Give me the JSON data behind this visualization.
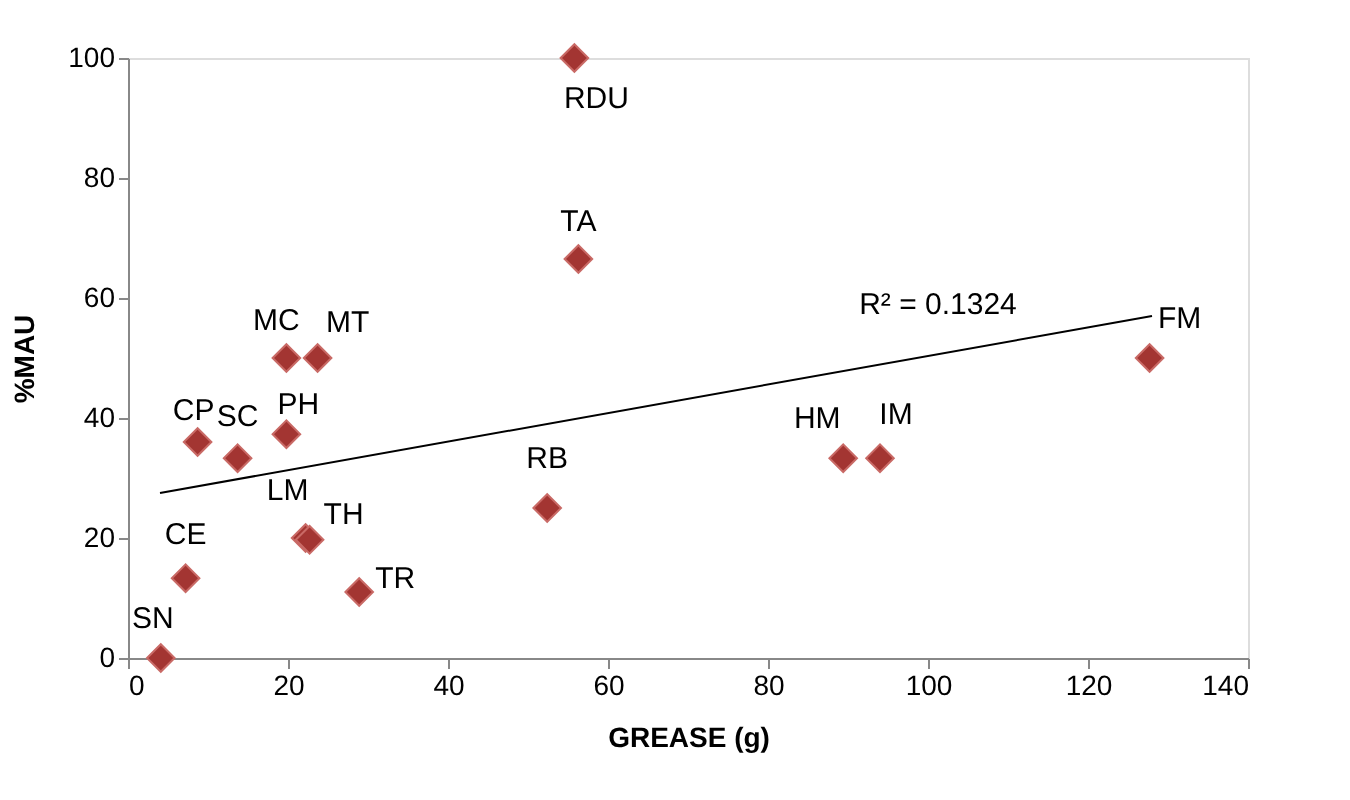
{
  "chart_data": {
    "type": "scatter",
    "xlabel": "GREASE (g)",
    "ylabel": "%MAU",
    "xlim": [
      0,
      140
    ],
    "ylim": [
      0,
      100
    ],
    "xticks": [
      0,
      20,
      40,
      60,
      80,
      100,
      120,
      140
    ],
    "yticks": [
      0,
      20,
      40,
      60,
      80,
      100
    ],
    "grid": false,
    "marker": "diamond",
    "series": [
      {
        "color": "#a33532",
        "x": [
          4.1,
          7.2,
          8.7,
          13.7,
          19.8,
          19.8,
          23.7,
          22.2,
          22.7,
          28.9,
          52.4,
          55.8,
          56.3,
          89.4,
          94,
          127.7
        ],
        "values": [
          0,
          13.3,
          36,
          33.3,
          37.3,
          50,
          50,
          20,
          19.7,
          11,
          25,
          100,
          66.5,
          33.3,
          33.3,
          50
        ]
      },
      {
        "type": "line",
        "color": "#000000",
        "marker": "none",
        "x": [
          4,
          128
        ],
        "values": [
          27.5,
          57
        ]
      }
    ],
    "annotations": [
      {
        "text": "SN",
        "x": 4.1,
        "y": 0
      },
      {
        "text": "CE",
        "x": 7.2,
        "y": 13.3
      },
      {
        "text": "CP",
        "x": 8.7,
        "y": 36
      },
      {
        "text": "SC",
        "x": 13.7,
        "y": 33.3
      },
      {
        "text": "PH",
        "x": 19.8,
        "y": 37.3
      },
      {
        "text": "MC",
        "x": 19.8,
        "y": 50
      },
      {
        "text": "MT",
        "x": 23.7,
        "y": 50
      },
      {
        "text": "LM",
        "x": 22.2,
        "y": 20
      },
      {
        "text": "TH",
        "x": 22.7,
        "y": 19.7
      },
      {
        "text": "TR",
        "x": 28.9,
        "y": 11
      },
      {
        "text": "RB",
        "x": 52.4,
        "y": 25
      },
      {
        "text": "RDU",
        "x": 55.8,
        "y": 100
      },
      {
        "text": "TA",
        "x": 56.3,
        "y": 66.5
      },
      {
        "text": "HM",
        "x": 89.4,
        "y": 33.3
      },
      {
        "text": "IM",
        "x": 94,
        "y": 33.3
      },
      {
        "text": "FM",
        "x": 127.7,
        "y": 50
      },
      "R² = 0.1324"
    ]
  }
}
